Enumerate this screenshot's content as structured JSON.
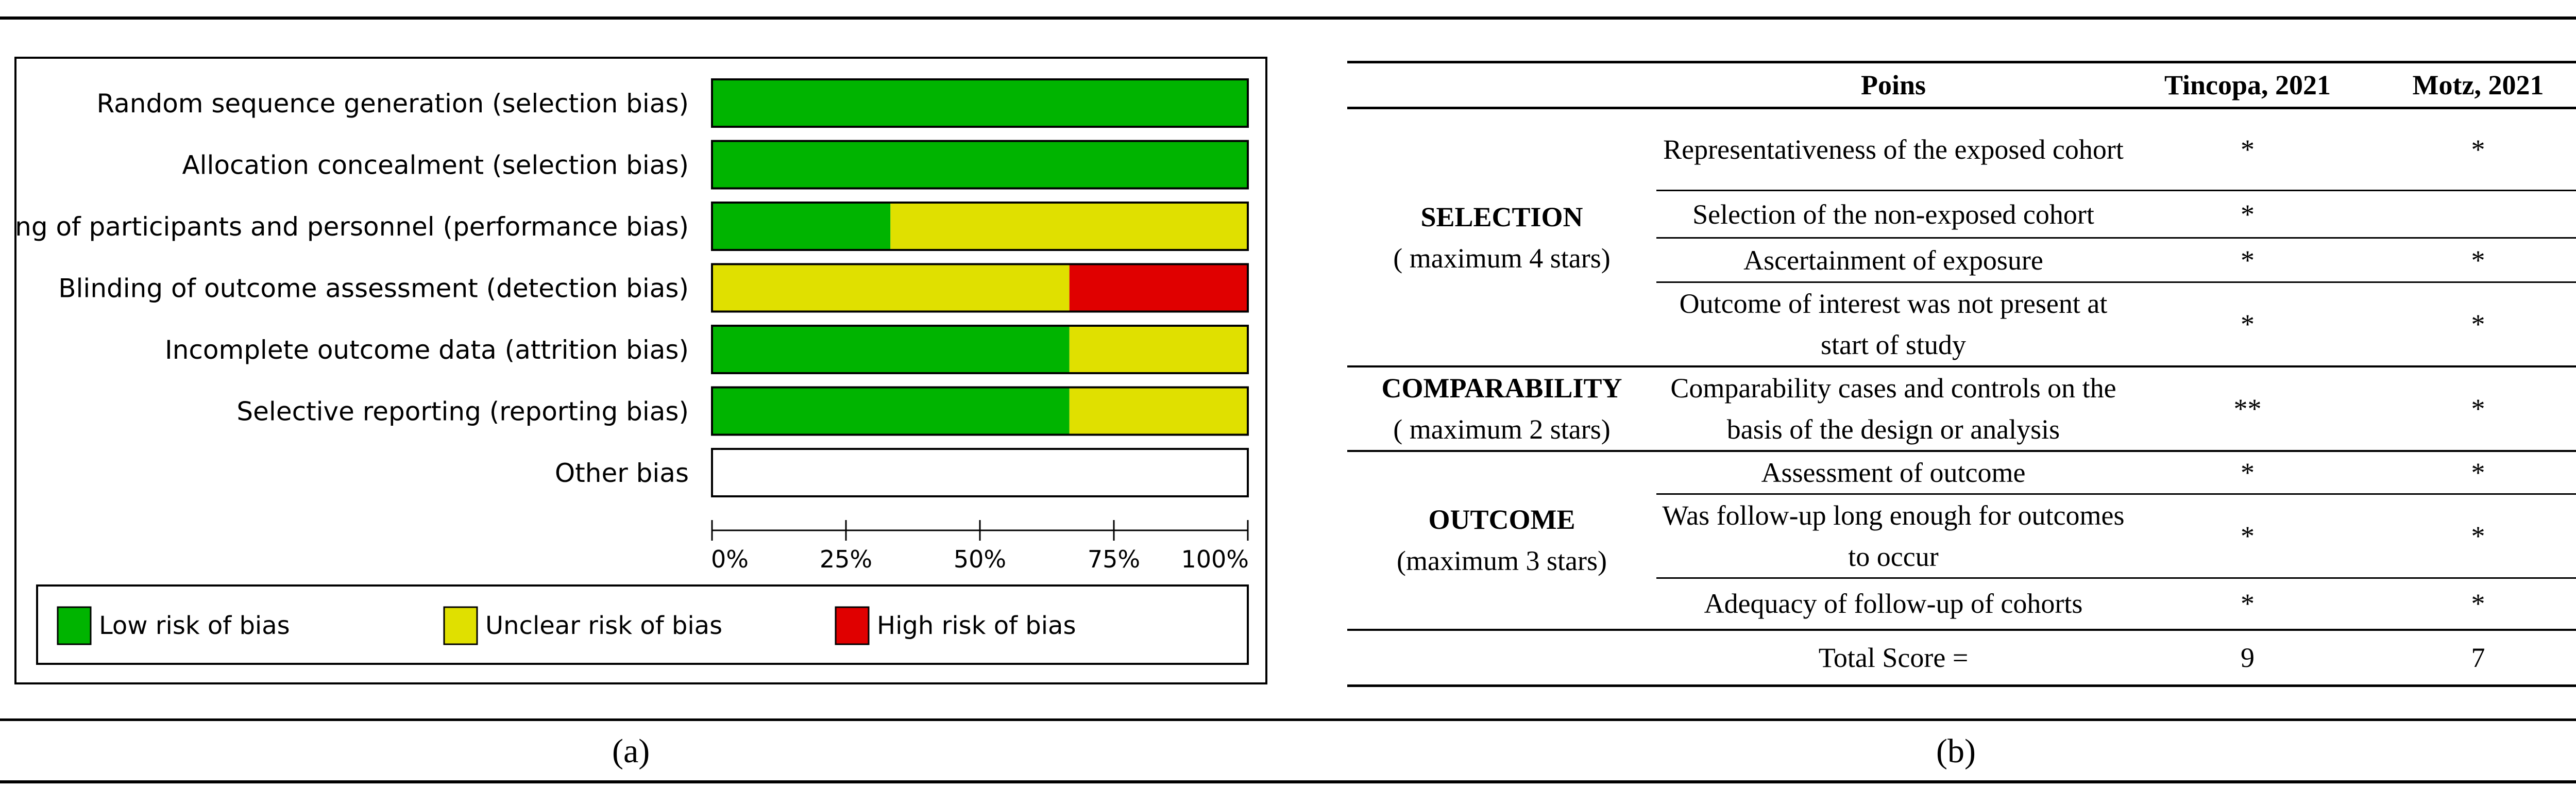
{
  "chart_data": {
    "type": "bar",
    "orientation": "horizontal",
    "stacked": true,
    "panel_label": "(a)",
    "categories": [
      "Random sequence generation (selection bias)",
      "Allocation concealment (selection bias)",
      "Blinding of participants and personnel (performance bias)",
      "Blinding of outcome assessment (detection bias)",
      "Incomplete outcome data (attrition bias)",
      "Selective reporting (reporting bias)",
      "Other bias"
    ],
    "series": [
      {
        "name": "Low risk of bias",
        "color": "#00b400",
        "values": [
          100,
          100,
          33.3,
          0,
          66.7,
          66.7,
          0
        ]
      },
      {
        "name": "Unclear risk of bias",
        "color": "#e0e000",
        "values": [
          0,
          0,
          66.7,
          66.7,
          33.3,
          33.3,
          0
        ]
      },
      {
        "name": "High risk of bias",
        "color": "#e00000",
        "values": [
          0,
          0,
          0,
          33.3,
          0,
          0,
          0
        ]
      }
    ],
    "xlim": [
      0,
      100
    ],
    "xticks": [
      "0%",
      "25%",
      "50%",
      "75%",
      "100%"
    ],
    "legend": "bottom",
    "grid": false
  },
  "table": {
    "panel_label": "(b)",
    "headers": [
      "Poins",
      "Tincopa, 2021",
      "Motz, 2021"
    ],
    "groups": [
      {
        "name": "SELECTION",
        "sub": "( maximum 4 stars)",
        "rows": [
          {
            "criterion": "Representativeness of the exposed cohort",
            "a": "*",
            "b": "*"
          },
          {
            "criterion": "Selection of the non-exposed cohort",
            "a": "*",
            "b": ""
          },
          {
            "criterion": "Ascertainment of exposure",
            "a": "*",
            "b": "*"
          },
          {
            "criterion": "Outcome of interest was not present at start of study",
            "a": "*",
            "b": "*"
          }
        ]
      },
      {
        "name": "COMPARABILITY",
        "sub": "( maximum 2 stars)",
        "rows": [
          {
            "criterion": "Comparability cases and controls on the basis of the design or analysis",
            "a": "**",
            "b": "*"
          }
        ]
      },
      {
        "name": "OUTCOME",
        "sub": "(maximum 3 stars)",
        "rows": [
          {
            "criterion": "Assessment of outcome",
            "a": "*",
            "b": "*"
          },
          {
            "criterion": "Was follow-up long enough for outcomes to occur",
            "a": "*",
            "b": "*"
          },
          {
            "criterion": "Adequacy of follow-up of cohorts",
            "a": "*",
            "b": "*"
          }
        ]
      }
    ],
    "total": {
      "label": "Total Score =",
      "a": "9",
      "b": "7"
    }
  }
}
